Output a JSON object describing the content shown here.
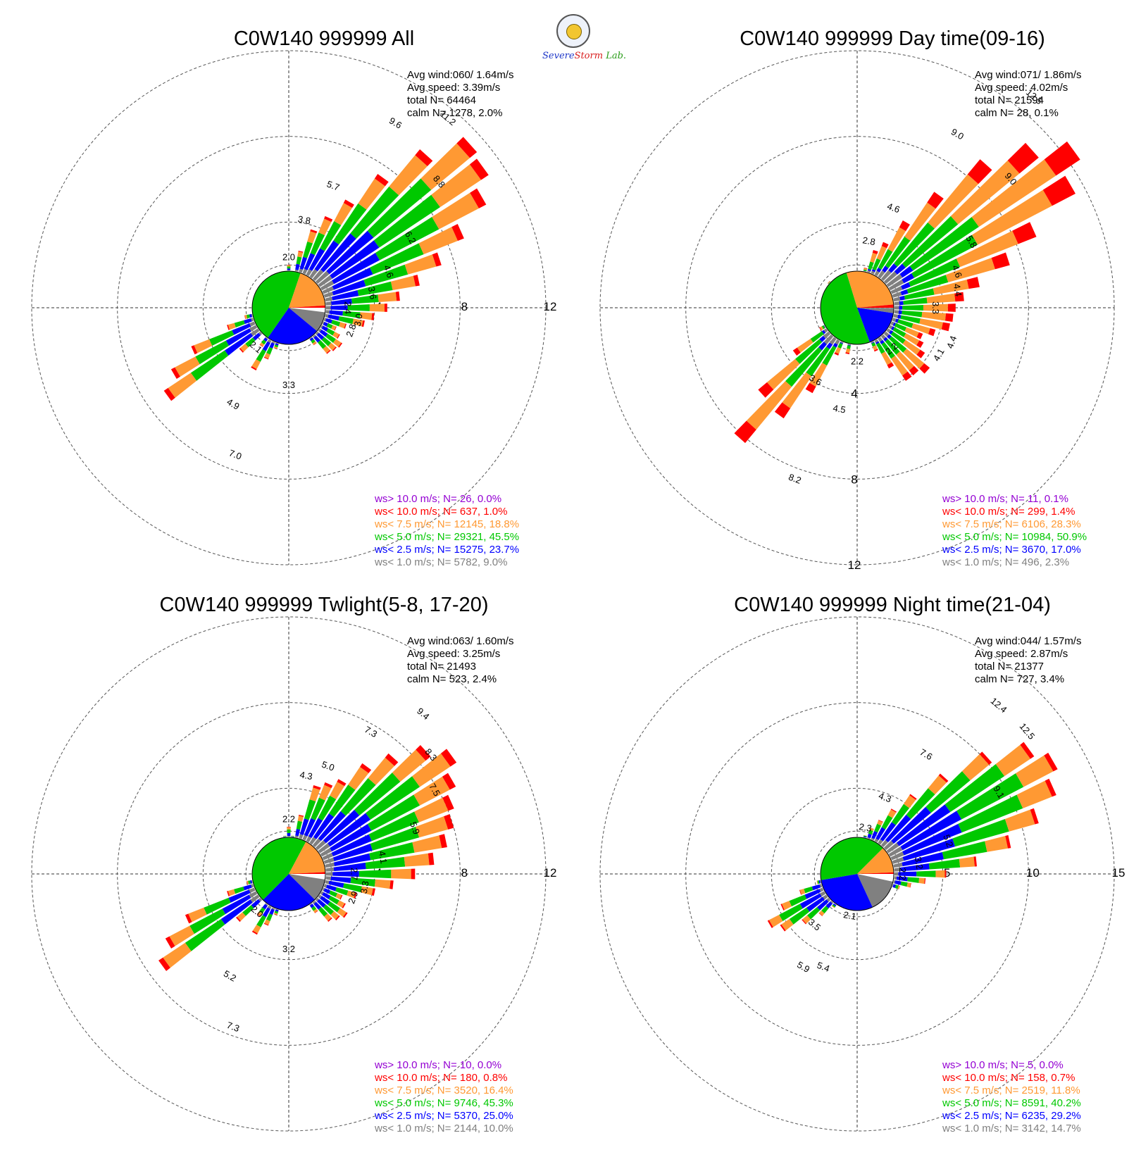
{
  "logo": {
    "line1": "Severe",
    "line2": "Storm",
    "line3": "Lab."
  },
  "colors": {
    "calm": "#ffffff",
    "gray": "#808080",
    "blue": "#0000ff",
    "green": "#00c800",
    "orange": "#ff9933",
    "red": "#ff0000",
    "purple": "#9400d3",
    "grid": "#555555"
  },
  "legend_labels": [
    "ws> 10.0 m/s; N=",
    "ws< 10.0 m/s; N=",
    "ws<  7.5 m/s; N=",
    "ws<  5.0 m/s; N=",
    "ws<  2.5 m/s; N=",
    "ws<  1.0 m/s; N="
  ],
  "stat_labels": [
    "Avg wind:",
    "Avg speed:",
    "total N=",
    "calm N="
  ],
  "chart_data": [
    {
      "type": "wind-rose",
      "title": "C0W140 999999 All",
      "stats": {
        "avg_wind": "060/ 1.64m/s",
        "avg_speed": "3.39m/s",
        "total_n": "64464",
        "calm_n": "1278,   2.0%"
      },
      "rings": [
        4,
        8,
        12
      ],
      "ring_label_axis": "east",
      "legend": [
        {
          "n": "26",
          "pct": "0.0%"
        },
        {
          "n": "637",
          "pct": "1.0%"
        },
        {
          "n": "12145",
          "pct": "18.8%"
        },
        {
          "n": "29321",
          "pct": "45.5%"
        },
        {
          "n": "15275",
          "pct": "23.7%"
        },
        {
          "n": "5782",
          "pct": "9.0%"
        }
      ],
      "pie_pct": [
        2.0,
        9.0,
        23.7,
        45.5,
        18.8,
        1.0
      ],
      "labeled_bars": [
        {
          "dir": 0,
          "value": 2.0
        },
        {
          "dir": 10,
          "value": 3.8
        },
        {
          "dir": 20,
          "value": 5.7
        },
        {
          "dir": 30,
          "value": 9.6
        },
        {
          "dir": 40,
          "value": 11.2
        },
        {
          "dir": 50,
          "value": 8.8
        },
        {
          "dir": 60,
          "value": 6.2
        },
        {
          "dir": 70,
          "value": 4.6
        },
        {
          "dir": 80,
          "value": 3.6
        },
        {
          "dir": 90,
          "value": 2.4
        },
        {
          "dir": 100,
          "value": 3.0
        },
        {
          "dir": 110,
          "value": 2.8
        },
        {
          "dir": 180,
          "value": 3.3
        },
        {
          "dir": 200,
          "value": 7.0
        },
        {
          "dir": 210,
          "value": 4.9
        },
        {
          "dir": 220,
          "value": 2.1
        }
      ],
      "all_bars": [
        2.0,
        1.7,
        2.7,
        3.8,
        4.6,
        5.7,
        7.5,
        9.6,
        11.4,
        11.2,
        10.4,
        8.8,
        7.4,
        6.2,
        5.2,
        4.6,
        4.0,
        3.6,
        2.8,
        2.4,
        2.7,
        3.0,
        2.9,
        2.8,
        2.1,
        1.7,
        1.4,
        1.2,
        1.1,
        1.1,
        1.1,
        1.2,
        1.6,
        2.0,
        2.6,
        3.3,
        2.2,
        1.4,
        3.0,
        7.0,
        6.2,
        4.9,
        3.0,
        2.1,
        1.6,
        1.3,
        1.1,
        1.1,
        1.2,
        1.3,
        1.6,
        1.7,
        1.6,
        1.4,
        1.2,
        1.1,
        1.2,
        1.3,
        1.5,
        1.7
      ],
      "composition": [
        0.3,
        0.2,
        0.38,
        0.12
      ]
    },
    {
      "type": "wind-rose",
      "title": "C0W140 999999 Day time(09-16)",
      "stats": {
        "avg_wind": "071/ 1.86m/s",
        "avg_speed": "4.02m/s",
        "total_n": "21594",
        "calm_n": "28,   0.1%"
      },
      "rings": [
        4,
        8,
        12
      ],
      "ring_label_axis": "south",
      "legend": [
        {
          "n": "11",
          "pct": "0.1%"
        },
        {
          "n": "299",
          "pct": "1.4%"
        },
        {
          "n": "6106",
          "pct": "28.3%"
        },
        {
          "n": "10984",
          "pct": "50.9%"
        },
        {
          "n": "3670",
          "pct": "17.0%"
        },
        {
          "n": "496",
          "pct": "2.3%"
        }
      ],
      "pie_pct": [
        0.1,
        2.3,
        17.0,
        50.9,
        28.3,
        1.4
      ],
      "labeled_bars": [
        {
          "dir": 10,
          "value": 2.8
        },
        {
          "dir": 20,
          "value": 4.6
        },
        {
          "dir": 30,
          "value": 9.0
        },
        {
          "dir": 40,
          "value": 12.5
        },
        {
          "dir": 50,
          "value": 9.0
        },
        {
          "dir": 60,
          "value": 5.8
        },
        {
          "dir": 70,
          "value": 4.6
        },
        {
          "dir": 80,
          "value": 4.4
        },
        {
          "dir": 90,
          "value": 3.3
        },
        {
          "dir": 110,
          "value": 4.4
        },
        {
          "dir": 120,
          "value": 4.1
        },
        {
          "dir": 140,
          "value": 2.2
        },
        {
          "dir": 180,
          "value": 2.2
        },
        {
          "dir": 190,
          "value": 4.5
        },
        {
          "dir": 200,
          "value": 8.2
        },
        {
          "dir": 210,
          "value": 3.6
        }
      ],
      "all_bars": [
        1.3,
        1.5,
        1.9,
        2.8,
        3.3,
        4.6,
        6.5,
        9.0,
        11.0,
        12.5,
        11.5,
        9.0,
        7.4,
        5.8,
        5.0,
        4.6,
        4.5,
        4.4,
        3.8,
        3.3,
        3.5,
        3.8,
        4.4,
        4.1,
        4.1,
        3.2,
        2.2,
        1.5,
        1.2,
        1.1,
        1.2,
        1.6,
        2.2,
        1.4,
        2.4,
        4.5,
        6.2,
        8.2,
        6.0,
        3.6,
        2.0,
        1.3,
        1.1,
        1.0,
        1.0,
        1.0,
        1.1,
        1.1,
        1.2,
        1.3,
        1.5,
        1.7,
        1.8,
        1.6,
        1.3,
        1.1,
        1.0,
        1.0,
        1.1,
        1.2
      ],
      "composition": [
        0.06,
        0.14,
        0.46,
        0.34
      ]
    },
    {
      "type": "wind-rose",
      "title": "C0W140 999999 Twlight(5-8, 17-20)",
      "stats": {
        "avg_wind": "063/ 1.60m/s",
        "avg_speed": "3.25m/s",
        "total_n": "21493",
        "calm_n": "523,   2.4%"
      },
      "rings": [
        4,
        8,
        12
      ],
      "ring_label_axis": "east",
      "legend": [
        {
          "n": "10",
          "pct": "0.0%"
        },
        {
          "n": "180",
          "pct": "0.8%"
        },
        {
          "n": "3520",
          "pct": "16.4%"
        },
        {
          "n": "9746",
          "pct": "45.3%"
        },
        {
          "n": "5370",
          "pct": "25.0%"
        },
        {
          "n": "2144",
          "pct": "10.0%"
        }
      ],
      "pie_pct": [
        2.4,
        10.0,
        25.0,
        45.3,
        16.4,
        0.8
      ],
      "labeled_bars": [
        {
          "dir": 0,
          "value": 2.2
        },
        {
          "dir": 10,
          "value": 4.3
        },
        {
          "dir": 20,
          "value": 5.0
        },
        {
          "dir": 30,
          "value": 7.3
        },
        {
          "dir": 40,
          "value": 9.4
        },
        {
          "dir": 50,
          "value": 8.3
        },
        {
          "dir": 60,
          "value": 7.5
        },
        {
          "dir": 70,
          "value": 5.9
        },
        {
          "dir": 80,
          "value": 4.1
        },
        {
          "dir": 90,
          "value": 2.7
        },
        {
          "dir": 100,
          "value": 3.3
        },
        {
          "dir": 110,
          "value": 2.9
        },
        {
          "dir": 180,
          "value": 3.2
        },
        {
          "dir": 200,
          "value": 7.3
        },
        {
          "dir": 210,
          "value": 5.2
        },
        {
          "dir": 220,
          "value": 2.0
        }
      ],
      "all_bars": [
        2.2,
        1.8,
        2.8,
        4.3,
        4.6,
        5.0,
        6.2,
        7.3,
        8.6,
        9.4,
        8.8,
        8.3,
        8.0,
        7.5,
        6.8,
        5.9,
        4.9,
        4.1,
        3.3,
        2.7,
        3.0,
        3.3,
        3.1,
        2.9,
        2.2,
        1.6,
        1.3,
        1.2,
        1.1,
        1.1,
        1.1,
        1.2,
        1.6,
        2.0,
        2.6,
        3.2,
        2.4,
        1.5,
        3.2,
        7.3,
        6.5,
        5.2,
        3.0,
        2.0,
        1.5,
        1.3,
        1.1,
        1.1,
        1.2,
        1.3,
        1.6,
        1.7,
        1.6,
        1.4,
        1.2,
        1.1,
        1.2,
        1.3,
        1.5,
        1.8
      ],
      "composition": [
        0.32,
        0.22,
        0.34,
        0.12
      ]
    },
    {
      "type": "wind-rose",
      "title": "C0W140 999999 Night time(21-04)",
      "stats": {
        "avg_wind": "044/ 1.57m/s",
        "avg_speed": "2.87m/s",
        "total_n": "21377",
        "calm_n": "727,   3.4%"
      },
      "rings": [
        5,
        10,
        15
      ],
      "ring_label_axis": "east",
      "legend": [
        {
          "n": "5",
          "pct": "0.0%"
        },
        {
          "n": "158",
          "pct": "0.7%"
        },
        {
          "n": "2519",
          "pct": "11.8%"
        },
        {
          "n": "8591",
          "pct": "40.2%"
        },
        {
          "n": "6235",
          "pct": "29.2%"
        },
        {
          "n": "3142",
          "pct": "14.7%"
        }
      ],
      "pie_pct": [
        3.4,
        14.7,
        29.2,
        40.2,
        11.8,
        0.7
      ],
      "labeled_bars": [
        {
          "dir": 10,
          "value": 2.3
        },
        {
          "dir": 20,
          "value": 4.3
        },
        {
          "dir": 30,
          "value": 7.6
        },
        {
          "dir": 40,
          "value": 12.4
        },
        {
          "dir": 50,
          "value": 12.5
        },
        {
          "dir": 60,
          "value": 9.1
        },
        {
          "dir": 70,
          "value": 5.2
        },
        {
          "dir": 80,
          "value": 3.2
        },
        {
          "dir": 90,
          "value": 2.2
        },
        {
          "dir": 190,
          "value": 2.1
        },
        {
          "dir": 200,
          "value": 5.4
        },
        {
          "dir": 210,
          "value": 5.9
        },
        {
          "dir": 220,
          "value": 3.5
        }
      ],
      "all_bars": [
        1.6,
        1.8,
        2.3,
        2.8,
        3.4,
        4.3,
        5.6,
        7.6,
        10.2,
        12.4,
        13.2,
        12.5,
        11.0,
        9.1,
        7.0,
        5.2,
        4.0,
        3.2,
        2.6,
        2.2,
        1.9,
        1.7,
        1.5,
        1.4,
        1.3,
        1.2,
        1.2,
        1.1,
        1.1,
        1.2,
        1.3,
        1.5,
        1.8,
        2.0,
        2.1,
        2.1,
        2.4,
        3.2,
        4.2,
        5.4,
        5.9,
        4.8,
        3.5,
        2.4,
        1.8,
        1.5,
        1.3,
        1.2,
        1.2,
        1.3,
        1.5,
        1.8,
        2.0,
        2.0,
        1.9,
        1.7,
        1.6,
        1.5,
        1.5,
        1.6
      ],
      "composition": [
        0.38,
        0.25,
        0.3,
        0.07
      ]
    }
  ]
}
